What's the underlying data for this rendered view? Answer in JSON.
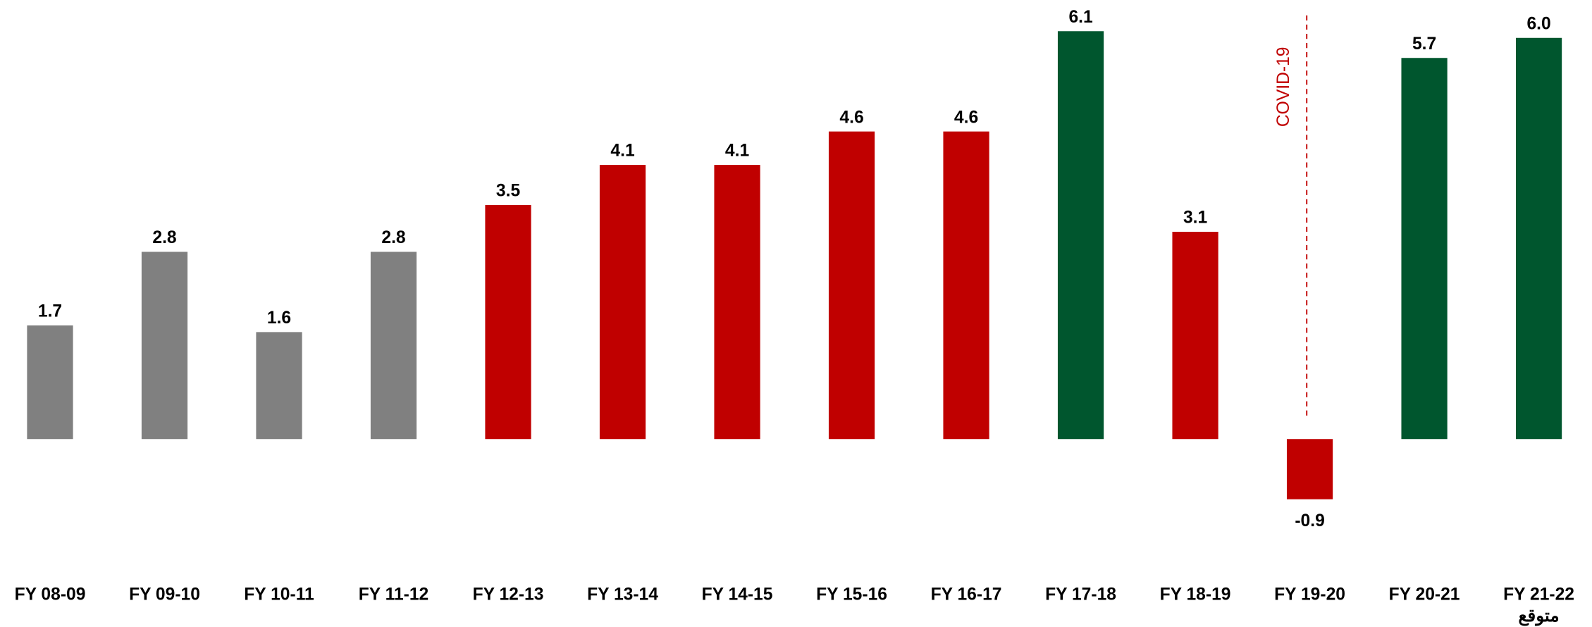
{
  "chart_data": {
    "type": "bar",
    "categories": [
      "FY 08-09",
      "FY 09-10",
      "FY 10-11",
      "FY 11-12",
      "FY 12-13",
      "FY 13-14",
      "FY 14-15",
      "FY 15-16",
      "FY 16-17",
      "FY 17-18",
      "FY 18-19",
      "FY 19-20",
      "FY 20-21",
      "FY 21-22"
    ],
    "values": [
      1.7,
      2.8,
      1.6,
      2.8,
      3.5,
      4.1,
      4.1,
      4.6,
      4.6,
      6.1,
      3.1,
      -0.9,
      5.7,
      6.0
    ],
    "value_labels": [
      "1.7",
      "2.8",
      "1.6",
      "2.8",
      "3.5",
      "4.1",
      "4.1",
      "4.6",
      "4.6",
      "6.1",
      "3.1",
      "-0.9",
      "5.7",
      "6.0"
    ],
    "colors": [
      "#808080",
      "#808080",
      "#808080",
      "#808080",
      "#c00000",
      "#c00000",
      "#c00000",
      "#c00000",
      "#c00000",
      "#00562e",
      "#c00000",
      "#c00000",
      "#00562e",
      "#00562e"
    ],
    "forecast_label": "متوقع",
    "annotation": {
      "text": "COVID-19",
      "category": "FY 19-20",
      "color": "#c00000"
    },
    "ylim": [
      -1.5,
      6.5
    ]
  }
}
